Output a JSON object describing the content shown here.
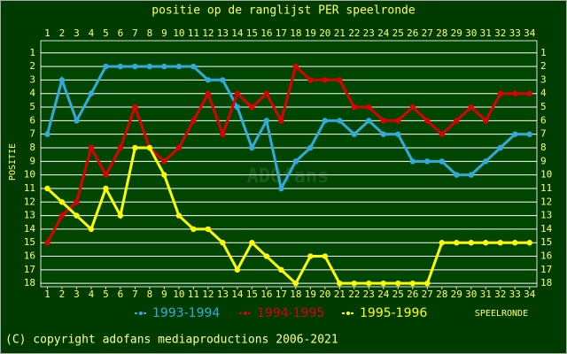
{
  "chart_data": {
    "type": "line",
    "title": "positie op de ranglijst PER speelronde",
    "y_label": "POSITIE",
    "x_label": "SPEELRONDE",
    "watermark": "ADOfans",
    "footer": "(C) copyright adofans mediaproductions 2006-2021",
    "x": [
      1,
      2,
      3,
      4,
      5,
      6,
      7,
      8,
      9,
      10,
      11,
      12,
      13,
      14,
      15,
      16,
      17,
      18,
      19,
      20,
      21,
      22,
      23,
      24,
      25,
      26,
      27,
      28,
      29,
      30,
      31,
      32,
      33,
      34
    ],
    "xlim": [
      0.55,
      34.5
    ],
    "xticks": [
      1,
      2,
      3,
      4,
      5,
      6,
      7,
      8,
      9,
      10,
      11,
      12,
      13,
      14,
      15,
      16,
      17,
      18,
      19,
      20,
      21,
      22,
      23,
      24,
      25,
      26,
      27,
      28,
      29,
      30,
      31,
      32,
      33,
      34
    ],
    "ylim": [
      18.25,
      0.1
    ],
    "yticks": [
      1,
      2,
      3,
      4,
      5,
      6,
      7,
      8,
      9,
      10,
      11,
      12,
      13,
      14,
      15,
      16,
      17,
      18
    ],
    "grid": true,
    "series": [
      {
        "name": "1993-1994",
        "color": "#33aadd",
        "values": [
          7,
          3,
          6,
          4,
          2,
          2,
          2,
          2,
          2,
          2,
          2,
          3,
          3,
          5,
          8,
          6,
          11,
          9,
          8,
          6,
          6,
          7,
          6,
          7,
          7,
          9,
          9,
          9,
          10,
          10,
          9,
          8,
          7,
          7
        ]
      },
      {
        "name": "1994-1995",
        "color": "#dd0000",
        "values": [
          15,
          13,
          12,
          8,
          10,
          8,
          5,
          8,
          9,
          8,
          6,
          4,
          7,
          4,
          5,
          4,
          6,
          2,
          3,
          3,
          3,
          5,
          5,
          6,
          6,
          5,
          6,
          7,
          6,
          5,
          6,
          4,
          4,
          4
        ]
      },
      {
        "name": "1995-1996",
        "color": "#ffff00",
        "values": [
          11,
          12,
          13,
          14,
          11,
          13,
          8,
          8,
          10,
          13,
          14,
          14,
          15,
          17,
          15,
          16,
          17,
          18,
          16,
          16,
          18,
          18,
          18,
          18,
          18,
          18,
          18,
          15,
          15,
          15,
          15,
          15,
          15,
          15
        ]
      }
    ]
  }
}
